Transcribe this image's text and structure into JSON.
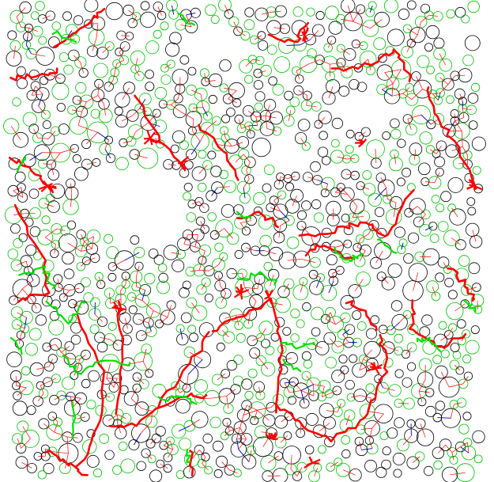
{
  "diagram": {
    "kind": "granular contact network",
    "description_printed": "",
    "background": "#ffffff",
    "colors": {
      "particle_outline_primary": "#000000",
      "particle_outline_secondary": "#00c000",
      "contact_weak": "#ff0000",
      "contact_strong": "#ff0000",
      "branch_chain": "#00e000",
      "isolated_link": "#0000aa"
    },
    "legend": []
  }
}
